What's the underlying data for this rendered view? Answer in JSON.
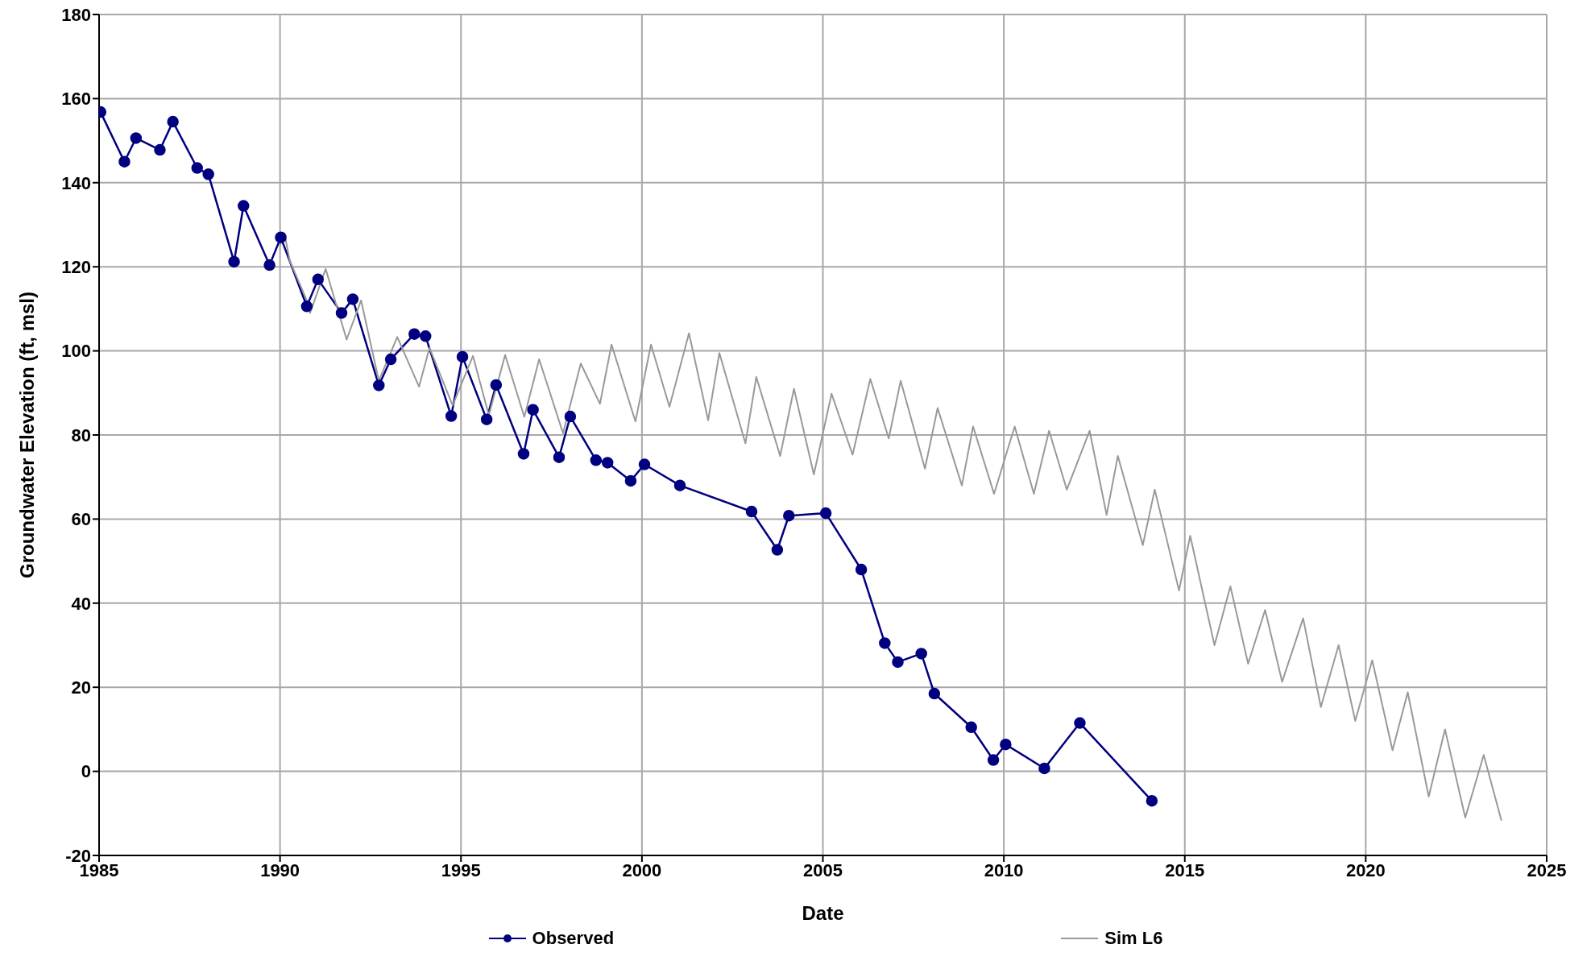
{
  "chart_data": {
    "type": "line",
    "xlabel": "Date",
    "ylabel": "Groundwater Elevation (ft, msl)",
    "xlim": [
      1985,
      2025
    ],
    "xticks": [
      1985,
      1990,
      1995,
      2000,
      2005,
      2010,
      2015,
      2020,
      2025
    ],
    "ylim": [
      -20,
      180
    ],
    "yticks": [
      -20,
      0,
      20,
      40,
      60,
      80,
      100,
      120,
      140,
      160,
      180
    ],
    "grid": true,
    "legend": "bottom",
    "series": [
      {
        "name": "Observed",
        "color": "#000080",
        "marker": "circle",
        "x": [
          1985.04,
          1985.7,
          1986.02,
          1986.68,
          1987.04,
          1987.71,
          1988.02,
          1988.73,
          1988.99,
          1989.71,
          1990.02,
          1990.74,
          1991.05,
          1991.7,
          1992.01,
          1992.73,
          1993.06,
          1993.71,
          1994.02,
          1994.73,
          1995.04,
          1995.71,
          1995.97,
          1996.73,
          1996.99,
          1997.71,
          1998.02,
          1998.73,
          1999.05,
          1999.69,
          2000.07,
          2001.05,
          2003.03,
          2003.74,
          2004.06,
          2005.08,
          2006.06,
          2006.71,
          2007.07,
          2007.72,
          2008.08,
          2009.1,
          2009.71,
          2010.05,
          2011.12,
          2012.1,
          2014.09
        ],
        "values": [
          156.8,
          145,
          150.6,
          147.8,
          154.5,
          143.5,
          142,
          121.2,
          134.5,
          120.4,
          127,
          110.6,
          117,
          109,
          112.3,
          91.8,
          98,
          104,
          103.5,
          84.5,
          98.6,
          83.7,
          91.9,
          75.5,
          86,
          74.7,
          84.4,
          74,
          73.4,
          69.1,
          73,
          68,
          61.8,
          52.7,
          60.8,
          61.4,
          48,
          30.5,
          26,
          28,
          18.5,
          10.5,
          2.7,
          6.4,
          0.7,
          11.5,
          -7
        ]
      },
      {
        "name": "Sim L6",
        "color": "#999999",
        "marker": "none",
        "x": [
          1990.0,
          1990.12,
          1990.27,
          1990.72,
          1990.83,
          1991.26,
          1991.84,
          1992.24,
          1992.73,
          1993.24,
          1993.84,
          1994.13,
          1994.77,
          1995.33,
          1995.77,
          1996.22,
          1996.75,
          1997.16,
          1997.82,
          1998.31,
          1998.84,
          1999.16,
          1999.82,
          2000.25,
          2000.76,
          2001.3,
          2001.83,
          2002.14,
          2002.86,
          2003.16,
          2003.82,
          2004.2,
          2004.75,
          2005.24,
          2005.82,
          2006.31,
          2006.82,
          2007.15,
          2007.82,
          2008.17,
          2008.84,
          2009.15,
          2009.73,
          2010.3,
          2010.83,
          2011.25,
          2011.74,
          2012.37,
          2012.84,
          2013.15,
          2013.84,
          2014.17,
          2014.84,
          2015.15,
          2015.82,
          2016.26,
          2016.75,
          2017.22,
          2017.69,
          2018.27,
          2018.76,
          2019.25,
          2019.71,
          2020.18,
          2020.74,
          2021.16,
          2021.74,
          2022.19,
          2022.75,
          2023.26,
          2023.75
        ],
        "values": [
          125,
          128,
          121.4,
          112.4,
          109,
          119.5,
          102.7,
          112,
          92.9,
          103.3,
          91.5,
          100.7,
          87,
          98.8,
          84.7,
          99,
          84.3,
          98,
          80.4,
          97,
          87.4,
          101.5,
          83.2,
          101.5,
          86.7,
          104.2,
          83.5,
          99.5,
          78,
          93.8,
          75,
          91,
          70.6,
          89.8,
          75.3,
          93.3,
          79.2,
          92.9,
          72,
          86.4,
          68,
          82,
          66,
          82,
          66,
          81,
          67,
          81,
          61,
          75,
          53.8,
          67,
          43,
          56,
          30,
          44,
          25.6,
          38.4,
          21.3,
          36.4,
          15.3,
          30,
          12,
          26.4,
          5,
          18.8,
          -6,
          10,
          -11,
          3.9,
          -11.7
        ]
      }
    ]
  }
}
